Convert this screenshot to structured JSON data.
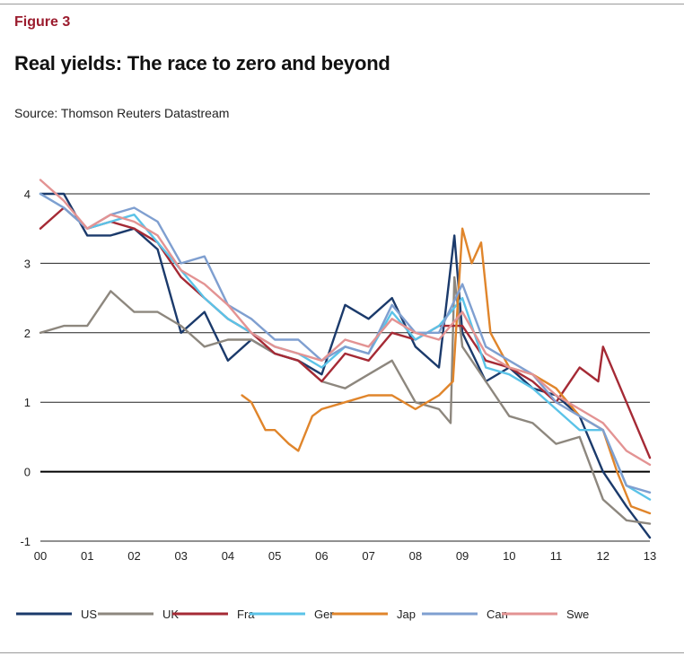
{
  "header": {
    "figure_label": "Figure 3",
    "title": "Real yields: The race to zero and beyond",
    "source": "Source: Thomson Reuters Datastream"
  },
  "chart_data": {
    "type": "line",
    "title": "Real yields: The race to zero and beyond",
    "xlabel": "",
    "ylabel": "",
    "xlim": [
      2000,
      2013
    ],
    "ylim": [
      -1,
      4.25
    ],
    "yticks": [
      -1,
      0,
      1,
      2,
      3,
      4
    ],
    "xticks": [
      2000,
      2001,
      2002,
      2003,
      2004,
      2005,
      2006,
      2007,
      2008,
      2009,
      2010,
      2011,
      2012,
      2013
    ],
    "xtick_labels": [
      "00",
      "01",
      "02",
      "03",
      "04",
      "05",
      "06",
      "07",
      "08",
      "09",
      "10",
      "11",
      "12",
      "13"
    ],
    "ytick_labels": [
      "-1",
      "0",
      "1",
      "2",
      "3",
      "4"
    ],
    "legend_position": "bottom",
    "series": [
      {
        "name": "US",
        "color": "#1b3a6b",
        "x": [
          2000,
          2000.5,
          2001,
          2001.5,
          2002,
          2002.5,
          2003,
          2003.5,
          2004,
          2004.5,
          2005,
          2005.5,
          2006,
          2006.5,
          2007,
          2007.5,
          2008,
          2008.5,
          2008.83,
          2009,
          2009.5,
          2010,
          2010.5,
          2011,
          2011.5,
          2012,
          2012.5,
          2013
        ],
        "y": [
          4.0,
          4.0,
          3.4,
          3.4,
          3.5,
          3.2,
          2.0,
          2.3,
          1.6,
          1.9,
          1.7,
          1.6,
          1.4,
          2.4,
          2.2,
          2.5,
          1.8,
          1.5,
          3.4,
          2.0,
          1.3,
          1.5,
          1.2,
          1.1,
          0.8,
          0.0,
          -0.5,
          -0.95
        ]
      },
      {
        "name": "UK",
        "color": "#8d877e",
        "x": [
          2000,
          2000.5,
          2001,
          2001.5,
          2002,
          2002.5,
          2003,
          2003.5,
          2004,
          2004.5,
          2005,
          2005.5,
          2006,
          2006.5,
          2007,
          2007.5,
          2008,
          2008.5,
          2008.75,
          2008.83,
          2009,
          2009.5,
          2010,
          2010.5,
          2011,
          2011.5,
          2012,
          2012.5,
          2013
        ],
        "y": [
          2.0,
          2.1,
          2.1,
          2.6,
          2.3,
          2.3,
          2.1,
          1.8,
          1.9,
          1.9,
          1.7,
          1.6,
          1.3,
          1.2,
          1.4,
          1.6,
          1.0,
          0.9,
          0.7,
          2.8,
          1.8,
          1.3,
          0.8,
          0.7,
          0.4,
          0.5,
          -0.4,
          -0.7,
          -0.75
        ]
      },
      {
        "name": "Fra",
        "color": "#a52a35",
        "x": [
          2000,
          2000.5,
          2001,
          2001.5,
          2002,
          2002.5,
          2003,
          2003.5,
          2004,
          2004.5,
          2005,
          2005.5,
          2006,
          2006.5,
          2007,
          2007.5,
          2008,
          2008.5,
          2009,
          2009.5,
          2010,
          2010.5,
          2011,
          2011.5,
          2011.9,
          2012,
          2012.5,
          2013
        ],
        "y": [
          3.5,
          3.8,
          3.5,
          3.6,
          3.5,
          3.3,
          2.8,
          2.5,
          2.2,
          2.0,
          1.7,
          1.6,
          1.3,
          1.7,
          1.6,
          2.0,
          1.9,
          2.1,
          2.1,
          1.6,
          1.5,
          1.3,
          1.0,
          1.5,
          1.3,
          1.8,
          1.0,
          0.2
        ]
      },
      {
        "name": "Ger",
        "color": "#5bc3e8",
        "x": [
          2000,
          2000.5,
          2001,
          2001.5,
          2002,
          2002.5,
          2003,
          2003.5,
          2004,
          2004.5,
          2005,
          2005.5,
          2006,
          2006.5,
          2007,
          2007.5,
          2008,
          2008.5,
          2009,
          2009.5,
          2010,
          2010.5,
          2011,
          2011.5,
          2012,
          2012.5,
          2013
        ],
        "y": [
          4.0,
          3.8,
          3.5,
          3.6,
          3.7,
          3.3,
          2.9,
          2.5,
          2.2,
          2.0,
          1.8,
          1.7,
          1.5,
          1.8,
          1.7,
          2.3,
          1.9,
          2.1,
          2.5,
          1.5,
          1.4,
          1.2,
          0.9,
          0.6,
          0.6,
          -0.2,
          -0.4
        ]
      },
      {
        "name": "Jap",
        "color": "#e0852b",
        "x": [
          2004.3,
          2004.5,
          2004.8,
          2005,
          2005.3,
          2005.5,
          2005.8,
          2006,
          2006.5,
          2007,
          2007.5,
          2008,
          2008.5,
          2008.8,
          2009,
          2009.2,
          2009.4,
          2009.6,
          2010,
          2010.5,
          2011,
          2011.5,
          2012,
          2012.3,
          2012.6,
          2013
        ],
        "y": [
          1.1,
          1.0,
          0.6,
          0.6,
          0.4,
          0.3,
          0.8,
          0.9,
          1.0,
          1.1,
          1.1,
          0.9,
          1.1,
          1.3,
          3.5,
          3.0,
          3.3,
          2.0,
          1.5,
          1.4,
          1.2,
          0.8,
          0.6,
          0.0,
          -0.5,
          -0.6
        ]
      },
      {
        "name": "Can",
        "color": "#7f9fd0",
        "x": [
          2000,
          2000.5,
          2001,
          2001.5,
          2002,
          2002.5,
          2003,
          2003.5,
          2004,
          2004.5,
          2005,
          2005.5,
          2006,
          2006.5,
          2007,
          2007.5,
          2008,
          2008.5,
          2009,
          2009.5,
          2010,
          2010.5,
          2011,
          2011.5,
          2012,
          2012.5,
          2013
        ],
        "y": [
          4.0,
          3.8,
          3.5,
          3.7,
          3.8,
          3.6,
          3.0,
          3.1,
          2.4,
          2.2,
          1.9,
          1.9,
          1.6,
          1.8,
          1.7,
          2.4,
          2.0,
          2.0,
          2.7,
          1.8,
          1.6,
          1.4,
          1.0,
          0.8,
          0.6,
          -0.2,
          -0.3
        ]
      },
      {
        "name": "Swe",
        "color": "#e39393",
        "x": [
          2000,
          2000.5,
          2001,
          2001.5,
          2002,
          2002.5,
          2003,
          2003.5,
          2004,
          2004.5,
          2005,
          2005.5,
          2006,
          2006.5,
          2007,
          2007.5,
          2008,
          2008.5,
          2009,
          2009.5,
          2010,
          2010.5,
          2011,
          2011.5,
          2012,
          2012.5,
          2013
        ],
        "y": [
          4.2,
          3.9,
          3.5,
          3.7,
          3.6,
          3.4,
          2.9,
          2.7,
          2.4,
          2.0,
          1.8,
          1.7,
          1.6,
          1.9,
          1.8,
          2.2,
          2.0,
          1.9,
          2.3,
          1.7,
          1.5,
          1.4,
          1.1,
          0.9,
          0.7,
          0.3,
          0.1
        ]
      }
    ]
  }
}
